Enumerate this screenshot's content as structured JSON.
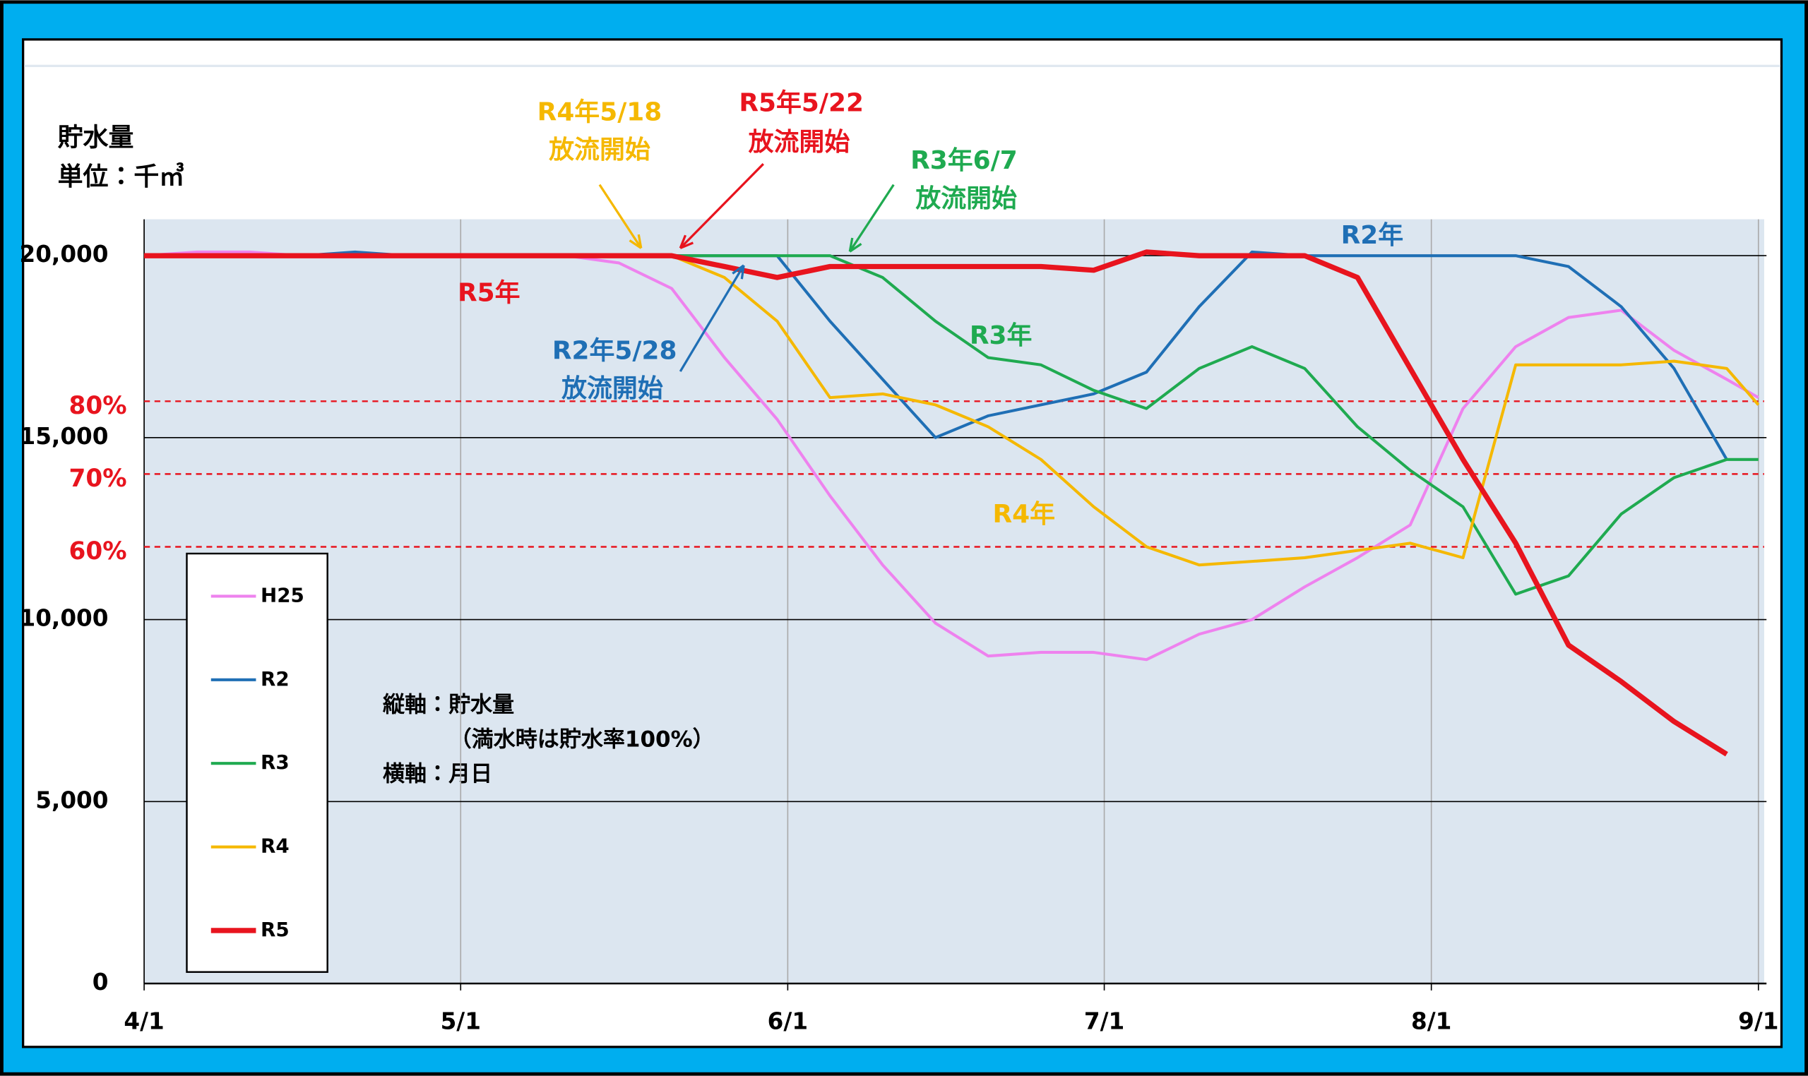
{
  "chart_data": {
    "type": "line",
    "y_label": [
      "貯水量",
      "単位：千㎥"
    ],
    "x": [
      "4/1",
      "4/6",
      "4/11",
      "4/16",
      "4/21",
      "4/26",
      "5/1",
      "5/6",
      "5/11",
      "5/16",
      "5/21",
      "5/26",
      "5/31",
      "6/5",
      "6/10",
      "6/15",
      "6/20",
      "6/25",
      "6/30",
      "7/5",
      "7/10",
      "7/15",
      "7/20",
      "7/25",
      "7/30",
      "8/4",
      "8/9",
      "8/14",
      "8/19",
      "8/24",
      "8/29",
      "9/1"
    ],
    "xlim": [
      "4/1",
      "9/1"
    ],
    "xticks": [
      "4/1",
      "5/1",
      "6/1",
      "7/1",
      "8/1",
      "9/1"
    ],
    "ylim": [
      0,
      21000
    ],
    "yticks": [
      0,
      {
        "value": 5000,
        "label": "5,000"
      },
      {
        "value": 10000,
        "label": "10,000"
      },
      {
        "value": 15000,
        "label": "15,000"
      },
      {
        "value": 20000,
        "label": "20,000"
      }
    ],
    "grid": true,
    "series": [
      {
        "name": "H25",
        "color": "#ee82ee",
        "values": [
          20000,
          20100,
          20100,
          20000,
          20000,
          20000,
          20000,
          20000,
          20000,
          19800,
          19100,
          17200,
          15500,
          13400,
          11500,
          9900,
          9000,
          9100,
          9100,
          8900,
          9600,
          10000,
          10900,
          11700,
          12600,
          15800,
          17500,
          18300,
          18500,
          17400,
          16600,
          16100
        ]
      },
      {
        "name": "R2",
        "color": "#1f6fb5",
        "values": [
          20000,
          20000,
          20000,
          20000,
          20100,
          20000,
          20000,
          20000,
          20000,
          20000,
          20000,
          20000,
          20000,
          18200,
          16600,
          15000,
          15600,
          15900,
          16200,
          16800,
          18600,
          20100,
          20000,
          20000,
          20000,
          20000,
          20000,
          19700,
          18600,
          16900,
          14400,
          null
        ]
      },
      {
        "name": "R3",
        "color": "#1faa50",
        "values": [
          20000,
          20000,
          20000,
          20000,
          20000,
          20000,
          20000,
          20000,
          20000,
          20000,
          20000,
          20000,
          20000,
          20000,
          19400,
          18200,
          17200,
          17000,
          16300,
          15800,
          16900,
          17500,
          16900,
          15300,
          14100,
          13100,
          10700,
          11200,
          12900,
          13900,
          14400,
          14400
        ]
      },
      {
        "name": "R4",
        "color": "#f5b800",
        "values": [
          20000,
          20000,
          20000,
          20000,
          20000,
          20000,
          20000,
          20000,
          20000,
          20000,
          20000,
          19400,
          18200,
          16100,
          16200,
          15900,
          15300,
          14400,
          13100,
          12000,
          11500,
          11600,
          11700,
          11900,
          12100,
          11700,
          17000,
          17000,
          17000,
          17100,
          16900,
          15900
        ]
      },
      {
        "name": "R5",
        "color": "#e8141e",
        "values": [
          20000,
          20000,
          20000,
          20000,
          20000,
          20000,
          20000,
          20000,
          20000,
          20000,
          20000,
          19700,
          19400,
          19700,
          19700,
          19700,
          19700,
          19700,
          19600,
          20100,
          20000,
          20000,
          20000,
          19400,
          16900,
          14400,
          12100,
          9300,
          8300,
          7200,
          6300,
          null
        ]
      }
    ],
    "ref_lines": [
      {
        "value": 16000,
        "label": "80%"
      },
      {
        "value": 14000,
        "label": "70%"
      },
      {
        "value": 12000,
        "label": "60%"
      }
    ],
    "annotations": [
      {
        "lines": [
          "R4年5/18",
          "放流開始"
        ],
        "color": "#f5b800"
      },
      {
        "lines": [
          "R5年5/22",
          "放流開始"
        ],
        "color": "#e8141e"
      },
      {
        "lines": [
          "R3年6/7",
          "放流開始"
        ],
        "color": "#1faa50"
      },
      {
        "lines": [
          "R2年5/28",
          "放流開始"
        ],
        "color": "#1f6fb5"
      },
      {
        "lines": [
          "R5年"
        ],
        "color": "#e8141e"
      },
      {
        "lines": [
          "R2年"
        ],
        "color": "#1f6fb5"
      },
      {
        "lines": [
          "R3年"
        ],
        "color": "#1faa50"
      },
      {
        "lines": [
          "R4年"
        ],
        "color": "#f5b800"
      }
    ],
    "note": [
      "縦軸：貯水量",
      "（満水時は貯水率100%）",
      "横軸：月日"
    ]
  }
}
